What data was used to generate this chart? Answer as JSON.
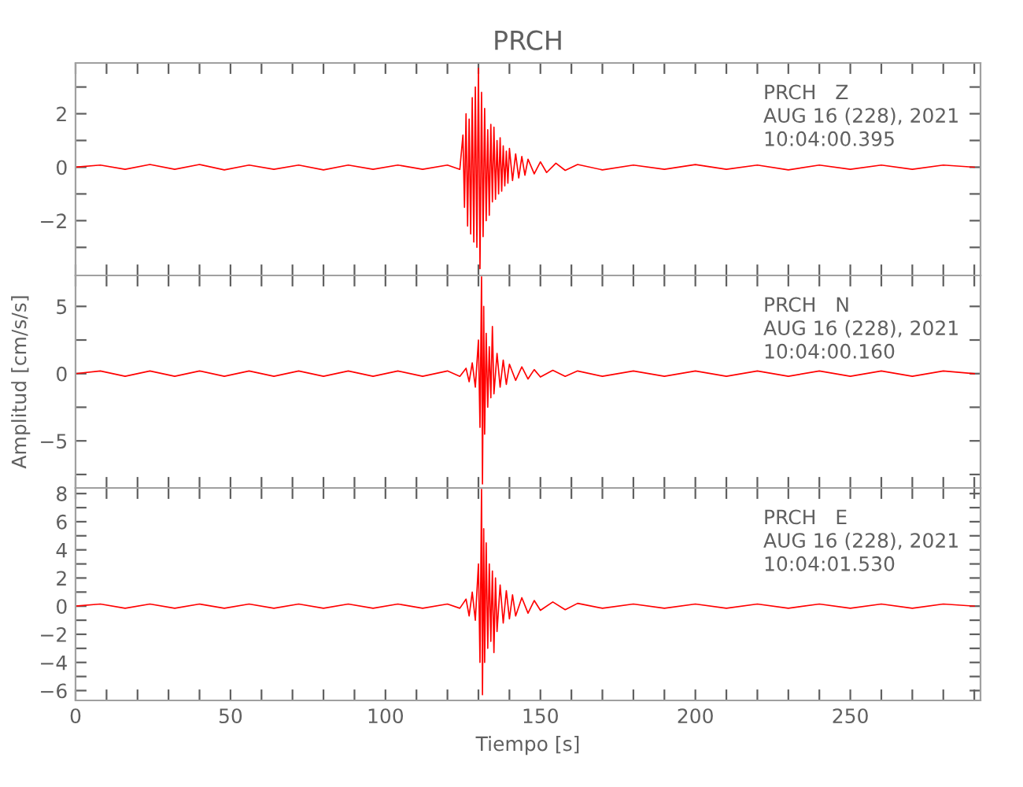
{
  "chart_data": [
    {
      "type": "line",
      "title": "PRCH",
      "annotations": [
        "PRCH   Z",
        "AUG 16 (228), 2021",
        "10:04:00.395"
      ],
      "xlim": [
        0,
        292
      ],
      "ylim": [
        -4.05,
        3.9
      ],
      "xticks": [
        0,
        {
          "value": 10,
          "label": null
        },
        {
          "value": 20,
          "label": null
        },
        {
          "value": 30,
          "label": null
        },
        {
          "value": 40,
          "label": null
        },
        50,
        {
          "value": 60,
          "label": null
        },
        {
          "value": 70,
          "label": null
        },
        {
          "value": 80,
          "label": null
        },
        {
          "value": 90,
          "label": null
        },
        100,
        {
          "value": 110,
          "label": null
        },
        {
          "value": 120,
          "label": null
        },
        {
          "value": 130,
          "label": null
        },
        {
          "value": 140,
          "label": null
        },
        150,
        {
          "value": 160,
          "label": null
        },
        {
          "value": 170,
          "label": null
        },
        {
          "value": 180,
          "label": null
        },
        {
          "value": 190,
          "label": null
        },
        200,
        {
          "value": 210,
          "label": null
        },
        {
          "value": 220,
          "label": null
        },
        {
          "value": 230,
          "label": null
        },
        {
          "value": 240,
          "label": null
        },
        250,
        {
          "value": 260,
          "label": null
        },
        {
          "value": 270,
          "label": null
        },
        {
          "value": 280,
          "label": null
        },
        {
          "value": 290,
          "label": null
        }
      ],
      "yticks": [
        {
          "value": -3,
          "label": null
        },
        {
          "value": -2,
          "label": "−2"
        },
        {
          "value": -1,
          "label": null
        },
        0,
        {
          "value": 1,
          "label": null
        },
        2,
        {
          "value": 3,
          "label": null
        }
      ],
      "tick_labels": "y",
      "grid": false,
      "legend": false,
      "marker": "none",
      "line_style": "solid",
      "series": [
        {
          "color": "#ff0000",
          "x": [
            0,
            8,
            16,
            24,
            32,
            40,
            48,
            56,
            64,
            72,
            80,
            88,
            96,
            104,
            112,
            120,
            124,
            125,
            125.5,
            126,
            126.5,
            127,
            127.5,
            128,
            128.5,
            129,
            129.5,
            130,
            130.5,
            131,
            131.5,
            132,
            132.5,
            133,
            133.5,
            134,
            134.5,
            135,
            135.5,
            136,
            136.5,
            137,
            137.5,
            138,
            138.5,
            139,
            139.5,
            140,
            141,
            142,
            143,
            144,
            145,
            146,
            148,
            150,
            152,
            155,
            158,
            162,
            170,
            180,
            190,
            200,
            210,
            220,
            230,
            240,
            250,
            260,
            270,
            280,
            290
          ],
          "values": [
            0,
            0.08,
            -0.08,
            0.1,
            -0.08,
            0.1,
            -0.1,
            0.08,
            -0.08,
            0.08,
            -0.1,
            0.08,
            -0.08,
            0.08,
            -0.08,
            0.08,
            -0.08,
            1.2,
            -1.5,
            2.0,
            -2.2,
            1.8,
            -2.5,
            2.6,
            -2.8,
            3.0,
            -3.0,
            3.7,
            -3.8,
            2.8,
            -2.6,
            2.2,
            -2.0,
            1.4,
            -1.8,
            1.6,
            -1.3,
            1.5,
            -1.2,
            1.0,
            -1.0,
            1.1,
            -0.9,
            0.8,
            -0.7,
            0.6,
            -0.6,
            0.7,
            -0.5,
            0.5,
            -0.4,
            0.4,
            -0.3,
            0.3,
            -0.25,
            0.2,
            -0.2,
            0.15,
            -0.12,
            0.1,
            -0.1,
            0.08,
            -0.08,
            0.1,
            -0.08,
            0.08,
            -0.1,
            0.08,
            -0.08,
            0.08,
            -0.08,
            0.08,
            0
          ]
        }
      ]
    },
    {
      "type": "line",
      "ylabel": "Amplitud [cm/s/s]",
      "annotations": [
        "PRCH   N",
        "AUG 16 (228), 2021",
        "10:04:00.160"
      ],
      "xlim": [
        0,
        292
      ],
      "ylim": [
        -8.5,
        7.3
      ],
      "xticks": [
        0,
        {
          "value": 10,
          "label": null
        },
        {
          "value": 20,
          "label": null
        },
        {
          "value": 30,
          "label": null
        },
        {
          "value": 40,
          "label": null
        },
        50,
        {
          "value": 60,
          "label": null
        },
        {
          "value": 70,
          "label": null
        },
        {
          "value": 80,
          "label": null
        },
        {
          "value": 90,
          "label": null
        },
        100,
        {
          "value": 110,
          "label": null
        },
        {
          "value": 120,
          "label": null
        },
        {
          "value": 130,
          "label": null
        },
        {
          "value": 140,
          "label": null
        },
        150,
        {
          "value": 160,
          "label": null
        },
        {
          "value": 170,
          "label": null
        },
        {
          "value": 180,
          "label": null
        },
        {
          "value": 190,
          "label": null
        },
        200,
        {
          "value": 210,
          "label": null
        },
        {
          "value": 220,
          "label": null
        },
        {
          "value": 230,
          "label": null
        },
        {
          "value": 240,
          "label": null
        },
        250,
        {
          "value": 260,
          "label": null
        },
        {
          "value": 270,
          "label": null
        },
        {
          "value": 280,
          "label": null
        },
        {
          "value": 290,
          "label": null
        }
      ],
      "yticks": [
        {
          "value": -7.5,
          "label": null
        },
        {
          "value": -5,
          "label": "−5"
        },
        {
          "value": -2.5,
          "label": null
        },
        0,
        {
          "value": 2.5,
          "label": null
        },
        5
      ],
      "tick_labels": "y",
      "grid": false,
      "legend": false,
      "marker": "none",
      "line_style": "solid",
      "series": [
        {
          "color": "#ff0000",
          "x": [
            0,
            8,
            16,
            24,
            32,
            40,
            48,
            56,
            64,
            72,
            80,
            88,
            96,
            104,
            112,
            120,
            124,
            126,
            127,
            128,
            129,
            130,
            130.5,
            131,
            131.3,
            131.7,
            132,
            132.5,
            133,
            133.5,
            134,
            134.5,
            135,
            136,
            137,
            138,
            139,
            140,
            142,
            144,
            146,
            148,
            150,
            154,
            158,
            162,
            170,
            180,
            190,
            200,
            210,
            220,
            230,
            240,
            250,
            260,
            270,
            280,
            290
          ],
          "values": [
            0,
            0.2,
            -0.2,
            0.2,
            -0.2,
            0.2,
            -0.2,
            0.2,
            -0.2,
            0.2,
            -0.2,
            0.2,
            -0.2,
            0.2,
            -0.2,
            0.2,
            -0.2,
            0.4,
            -0.6,
            0.8,
            -1.0,
            2.5,
            -4.0,
            7.2,
            -8.2,
            5.0,
            -4.5,
            3.0,
            -2.5,
            2.0,
            -1.8,
            3.5,
            -1.5,
            1.5,
            -1.0,
            1.0,
            -0.8,
            0.7,
            -0.5,
            0.5,
            -0.4,
            0.3,
            -0.25,
            0.25,
            -0.2,
            0.2,
            -0.2,
            0.2,
            -0.2,
            0.2,
            -0.2,
            0.2,
            -0.2,
            0.2,
            -0.2,
            0.2,
            -0.2,
            0.2,
            0
          ]
        }
      ]
    },
    {
      "type": "line",
      "xlabel": "Tiempo [s]",
      "annotations": [
        "PRCH   E",
        "AUG 16 (228), 2021",
        "10:04:01.530"
      ],
      "xlim": [
        0,
        292
      ],
      "ylim": [
        -6.7,
        8.4
      ],
      "xticks": [
        0,
        {
          "value": 10,
          "label": null
        },
        {
          "value": 20,
          "label": null
        },
        {
          "value": 30,
          "label": null
        },
        {
          "value": 40,
          "label": null
        },
        50,
        {
          "value": 60,
          "label": null
        },
        {
          "value": 70,
          "label": null
        },
        {
          "value": 80,
          "label": null
        },
        {
          "value": 90,
          "label": null
        },
        100,
        {
          "value": 110,
          "label": null
        },
        {
          "value": 120,
          "label": null
        },
        {
          "value": 130,
          "label": null
        },
        {
          "value": 140,
          "label": null
        },
        150,
        {
          "value": 160,
          "label": null
        },
        {
          "value": 170,
          "label": null
        },
        {
          "value": 180,
          "label": null
        },
        {
          "value": 190,
          "label": null
        },
        200,
        {
          "value": 210,
          "label": null
        },
        {
          "value": 220,
          "label": null
        },
        {
          "value": 230,
          "label": null
        },
        {
          "value": 240,
          "label": null
        },
        250,
        {
          "value": 260,
          "label": null
        },
        {
          "value": 270,
          "label": null
        },
        {
          "value": 280,
          "label": null
        },
        {
          "value": 290,
          "label": null
        }
      ],
      "yticks": [
        {
          "value": -6,
          "label": "−6"
        },
        {
          "value": -5,
          "label": null
        },
        {
          "value": -4,
          "label": "−4"
        },
        {
          "value": -3,
          "label": null
        },
        {
          "value": -2,
          "label": "−2"
        },
        {
          "value": -1,
          "label": null
        },
        0,
        {
          "value": 1,
          "label": null
        },
        2,
        {
          "value": 3,
          "label": null
        },
        4,
        {
          "value": 5,
          "label": null
        },
        6,
        {
          "value": 7,
          "label": null
        },
        8
      ],
      "grid": false,
      "legend": false,
      "marker": "none",
      "line_style": "solid",
      "series": [
        {
          "color": "#ff0000",
          "x": [
            0,
            8,
            16,
            24,
            32,
            40,
            48,
            56,
            64,
            72,
            80,
            88,
            96,
            104,
            112,
            120,
            124,
            126,
            127,
            128,
            129,
            130,
            130.5,
            131,
            131.3,
            131.7,
            132,
            132.5,
            133,
            133.5,
            134,
            134.5,
            135,
            135.5,
            136,
            137,
            138,
            139,
            140,
            141,
            142,
            144,
            146,
            148,
            150,
            154,
            158,
            162,
            170,
            180,
            190,
            200,
            210,
            220,
            230,
            240,
            250,
            260,
            270,
            280,
            290
          ],
          "values": [
            0,
            0.15,
            -0.15,
            0.15,
            -0.15,
            0.15,
            -0.15,
            0.15,
            -0.15,
            0.15,
            -0.15,
            0.15,
            -0.15,
            0.15,
            -0.15,
            0.15,
            -0.15,
            0.5,
            -0.7,
            1.0,
            -1.0,
            3.0,
            -4.0,
            8.3,
            -6.3,
            5.5,
            -4.0,
            4.5,
            -3.0,
            3.0,
            -2.5,
            2.5,
            -3.3,
            2.0,
            -1.8,
            1.5,
            -1.2,
            1.1,
            -0.9,
            0.8,
            -0.7,
            0.6,
            -0.5,
            0.4,
            -0.3,
            0.3,
            -0.25,
            0.2,
            -0.15,
            0.15,
            -0.15,
            0.15,
            -0.15,
            0.15,
            -0.15,
            0.15,
            -0.15,
            0.15,
            -0.15,
            0.15,
            0
          ]
        }
      ]
    }
  ]
}
